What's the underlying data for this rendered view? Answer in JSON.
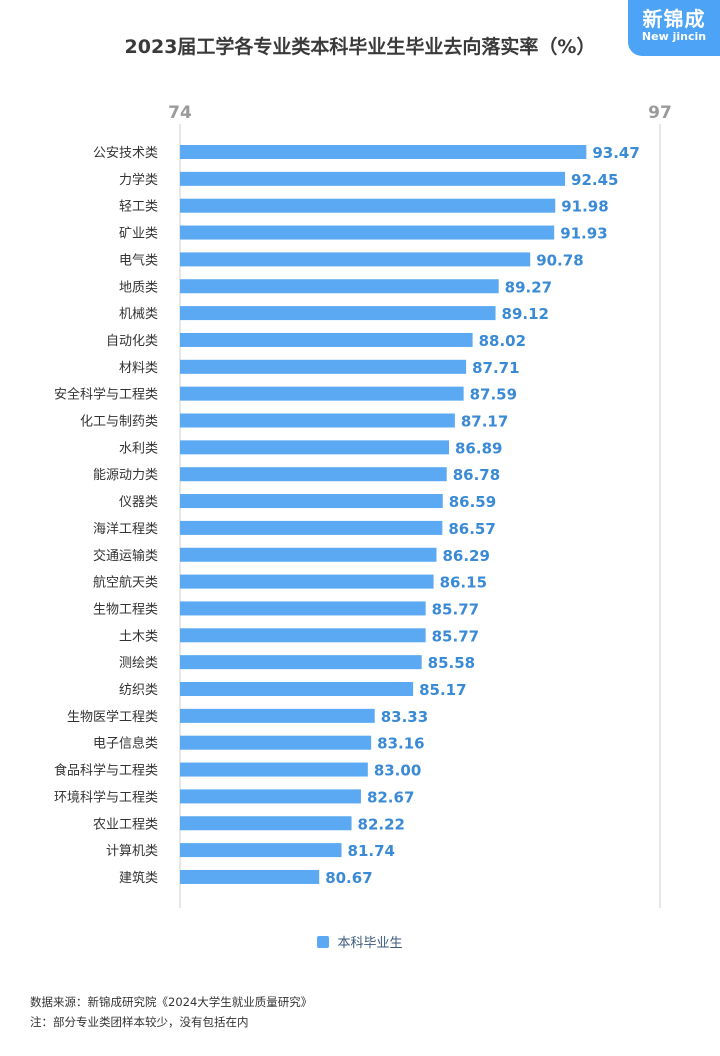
{
  "logo": {
    "cn": "新锦成",
    "en": "New jincin"
  },
  "chart_data": {
    "type": "bar",
    "orientation": "horizontal",
    "title": "2023届工学各专业类本科毕业生毕业去向落实率（%）",
    "xlim": [
      74,
      97
    ],
    "tick_labels": [
      "74",
      "97"
    ],
    "categories": [
      "公安技术类",
      "力学类",
      "轻工类",
      "矿业类",
      "电气类",
      "地质类",
      "机械类",
      "自动化类",
      "材料类",
      "安全科学与工程类",
      "化工与制药类",
      "水利类",
      "能源动力类",
      "仪器类",
      "海洋工程类",
      "交通运输类",
      "航空航天类",
      "生物工程类",
      "土木类",
      "测绘类",
      "纺织类",
      "生物医学工程类",
      "电子信息类",
      "食品科学与工程类",
      "环境科学与工程类",
      "农业工程类",
      "计算机类",
      "建筑类"
    ],
    "series": [
      {
        "name": "本科毕业生",
        "color": "#5aa9f2",
        "values": [
          93.47,
          92.45,
          91.98,
          91.93,
          90.78,
          89.27,
          89.12,
          88.02,
          87.71,
          87.59,
          87.17,
          86.89,
          86.78,
          86.59,
          86.57,
          86.29,
          86.15,
          85.77,
          85.77,
          85.58,
          85.17,
          83.33,
          83.16,
          83.0,
          82.67,
          82.22,
          81.74,
          80.67
        ],
        "labels": [
          "93.47",
          "92.45",
          "91.98",
          "91.93",
          "90.78",
          "89.27",
          "89.12",
          "88.02",
          "87.71",
          "87.59",
          "87.17",
          "86.89",
          "86.78",
          "86.59",
          "86.57",
          "86.29",
          "86.15",
          "85.77",
          "85.77",
          "85.58",
          "85.17",
          "83.33",
          "83.16",
          "83.00",
          "82.67",
          "82.22",
          "81.74",
          "80.67"
        ]
      }
    ],
    "legend_position": "bottom-center",
    "value_label_color": "#3a8ad6",
    "gridlines": "vertical at axis limits"
  },
  "legend": {
    "label": "本科毕业生"
  },
  "source": {
    "line1": "数据来源：新锦成研究院《2024大学生就业质量研究》",
    "line2": "注：部分专业类团样本较少，没有包括在内"
  }
}
